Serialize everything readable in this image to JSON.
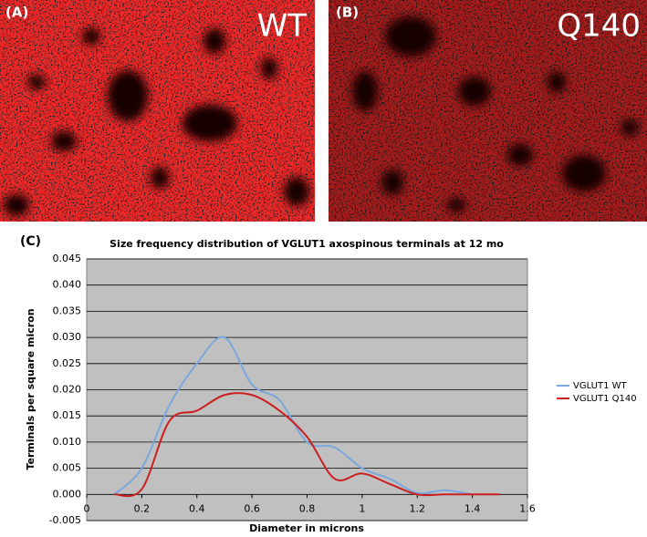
{
  "panels": [
    {
      "label": "(A)",
      "caption": "WT"
    },
    {
      "label": "(B)",
      "caption": "Q140"
    }
  ],
  "chart_label": "(C)",
  "chart_data": {
    "type": "line",
    "title": "Size frequency distribution of VGLUT1 axospinous terminals at 12 mo",
    "x_label": "Diameter in microns",
    "y_label": "Terminals per square micron",
    "x": [
      0.1,
      0.2,
      0.3,
      0.4,
      0.5,
      0.6,
      0.7,
      0.8,
      0.9,
      1.0,
      1.1,
      1.2,
      1.3,
      1.4,
      1.5
    ],
    "series": [
      {
        "name": "VGLUT1 WT",
        "color": "#7ba7dc",
        "values": [
          0,
          0.005,
          0.017,
          0.025,
          0.03,
          0.021,
          0.018,
          0.01,
          0.009,
          0.005,
          0.003,
          0.0003,
          0.0008,
          0,
          null
        ]
      },
      {
        "name": "VGLUT1 Q140",
        "color": "#cc1f1f",
        "values": [
          0,
          0.001,
          0.014,
          0.016,
          0.019,
          0.019,
          0.016,
          0.011,
          0.003,
          0.004,
          0.002,
          0,
          0,
          0,
          0
        ]
      }
    ],
    "xlim": [
      0,
      1.6
    ],
    "xticks": [
      0,
      0.2,
      0.4,
      0.6,
      0.8,
      1,
      1.2,
      1.4,
      1.6
    ],
    "ylim": [
      -0.005,
      0.045
    ],
    "yticks": [
      -0.005,
      {
        "value": 0,
        "label": "0.000"
      },
      0.005,
      {
        "value": 0.01,
        "label": "0.010"
      },
      0.015,
      {
        "value": 0.02,
        "label": "0.020"
      },
      0.025,
      {
        "value": 0.03,
        "label": "0.030"
      },
      0.035,
      {
        "value": 0.04,
        "label": "0.040"
      },
      0.045
    ],
    "grid": true,
    "legend": "right"
  }
}
